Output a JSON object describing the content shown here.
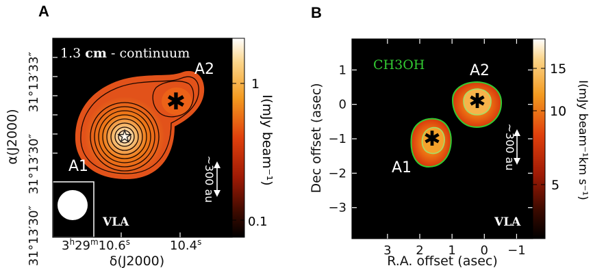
{
  "panels": [
    {
      "letter": "A",
      "annotation": {
        "pre": "1.3 ",
        "bold": "cm",
        "post": " - continuum"
      },
      "telescope": "VLA",
      "sources": [
        "A1",
        "A2"
      ],
      "scale_label": "~300 au",
      "xlabel": "δ(J2000)",
      "ylabel": "α(J2000)",
      "xticks": {
        "main": "3",
        "sup1": "h",
        "n2": "29",
        "sup2": "m",
        "n3": "10.6",
        "sup3": "s",
        "right": "10.4",
        "right_sup": "s"
      },
      "yticks": {
        "top": "31°13′33″",
        "bottom_a": "31°13′30″",
        "bottom_b": "31°13′30″"
      },
      "colorbar": {
        "label": "I(mJy beam⁻¹)",
        "ticks": [
          "1",
          "0.1"
        ]
      }
    },
    {
      "letter": "B",
      "annotation": {
        "text": "CH3OH"
      },
      "telescope": "VLA",
      "sources": [
        "A1",
        "A2"
      ],
      "scale_label": "~300 au",
      "xlabel": "R.A. offset (asec)",
      "ylabel": "Dec offset (asec)",
      "colorbar": {
        "label": "I(mJy beam⁻¹km s⁻¹)",
        "ticks": [
          "15",
          "10",
          "5"
        ]
      }
    }
  ],
  "chart_data": [
    {
      "type": "heatmap",
      "title": "1.3 cm - continuum",
      "xlabel": "δ(J2000)",
      "ylabel": "α(J2000)",
      "colorbar_label": "I(mJy beam⁻¹)",
      "colorbar_scale": "log",
      "colorbar_ticks": [
        1,
        0.1
      ],
      "sources": [
        {
          "name": "A1",
          "peak_mJy_per_beam": 1.6
        },
        {
          "name": "A2",
          "peak_mJy_per_beam": 0.6
        }
      ],
      "colors": {
        "low": "#000000",
        "mid": "#e0400c",
        "high": "#ffffff"
      }
    },
    {
      "type": "heatmap",
      "title": "CH3OH",
      "xlabel": "R.A. offset (asec)",
      "ylabel": "Dec offset (asec)",
      "xlim": [
        4.1,
        -1.5
      ],
      "ylim": [
        -3.9,
        1.9
      ],
      "xticks": [
        3,
        2,
        1,
        0,
        -1
      ],
      "yticks": [
        1,
        0,
        -1,
        -2,
        -3
      ],
      "colorbar_label": "I(mJy beam⁻¹km s⁻¹)",
      "colorbar_ticks": [
        15,
        10,
        5
      ],
      "sources": [
        {
          "name": "A1",
          "x": 1.35,
          "y": -1.25,
          "peak": 12
        },
        {
          "name": "A2",
          "x": 0.0,
          "y": 0.0,
          "peak": 16
        }
      ],
      "contour_color": "#33cc33"
    }
  ]
}
